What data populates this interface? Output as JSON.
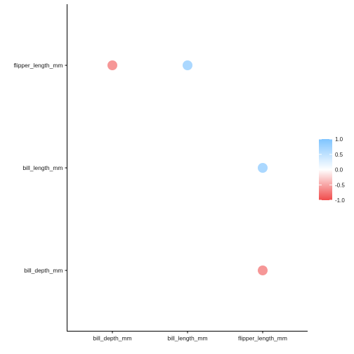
{
  "chart_data": {
    "type": "scatter",
    "title": "",
    "xlabel": "",
    "ylabel": "",
    "x_categories": [
      "bill_depth_mm",
      "bill_length_mm",
      "flipper_length_mm"
    ],
    "y_categories": [
      "bill_depth_mm",
      "bill_length_mm",
      "flipper_length_mm"
    ],
    "points": [
      {
        "x": "bill_depth_mm",
        "y": "flipper_length_mm",
        "value": -0.58
      },
      {
        "x": "bill_length_mm",
        "y": "flipper_length_mm",
        "value": 0.66
      },
      {
        "x": "flipper_length_mm",
        "y": "bill_length_mm",
        "value": 0.66
      },
      {
        "x": "flipper_length_mm",
        "y": "bill_depth_mm",
        "value": -0.58
      }
    ],
    "color_scale": {
      "low": "#f04b4b",
      "mid": "#ffffff",
      "high": "#7fc4ff",
      "limits": [
        -1,
        1
      ],
      "breaks": [
        1.0,
        0.5,
        0.0,
        -0.5,
        -1.0
      ],
      "break_labels": [
        "1.0",
        "0.5",
        "0.0",
        "-0.5",
        "-1.0"
      ]
    },
    "legend_position": "right",
    "grid": false
  }
}
